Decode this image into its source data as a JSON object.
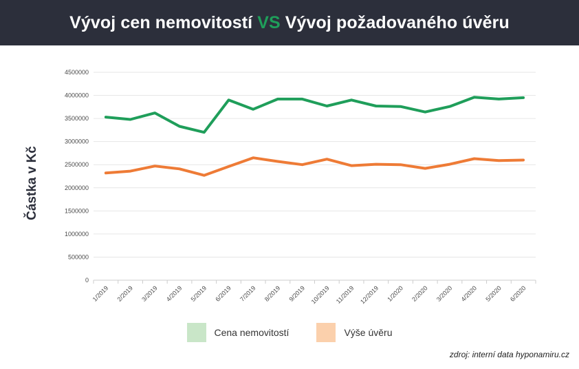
{
  "header": {
    "title_part1": "Vývoj cen nemovitostí",
    "title_vs": "VS",
    "title_part2": "Vývoj požadovaného úvěru"
  },
  "colors": {
    "header_bg": "#2c2f3b",
    "vs": "#1f9e5a",
    "series_property": "#1f9e5a",
    "series_loan": "#ee7b36",
    "legend_property": "#c9e6c8",
    "legend_loan": "#fbd0ac",
    "grid": "#e6e6e6"
  },
  "legend": {
    "property": "Cena nemovitostí",
    "loan": "Výše úvěru"
  },
  "source": "zdroj: interní data hyponamiru.cz",
  "chart_data": {
    "type": "line",
    "title": "Vývoj cen nemovitostí VS Vývoj požadovaného úvěru",
    "xlabel": "",
    "ylabel": "Částka v Kč",
    "ylim": [
      0,
      4500000
    ],
    "yticks": [
      0,
      500000,
      1000000,
      1500000,
      2000000,
      2500000,
      3000000,
      3500000,
      4000000,
      4500000
    ],
    "grid": true,
    "legend_position": "bottom",
    "categories": [
      "1/2019",
      "2/2019",
      "3/2019",
      "4/2019",
      "5/2019",
      "6/2019",
      "7/2019",
      "8/2019",
      "9/2019",
      "10/2019",
      "11/2019",
      "12/2019",
      "1/2020",
      "2/2020",
      "3/2020",
      "4/2020",
      "5/2020",
      "6/2020"
    ],
    "series": [
      {
        "name": "Cena nemovitostí",
        "values": [
          3530000,
          3480000,
          3620000,
          3330000,
          3200000,
          3900000,
          3700000,
          3920000,
          3920000,
          3770000,
          3900000,
          3770000,
          3760000,
          3640000,
          3760000,
          3960000,
          3920000,
          3950000
        ]
      },
      {
        "name": "Výše úvěru",
        "values": [
          2320000,
          2360000,
          2470000,
          2410000,
          2270000,
          2460000,
          2650000,
          2570000,
          2500000,
          2620000,
          2480000,
          2510000,
          2500000,
          2420000,
          2510000,
          2630000,
          2590000,
          2600000
        ]
      }
    ]
  }
}
